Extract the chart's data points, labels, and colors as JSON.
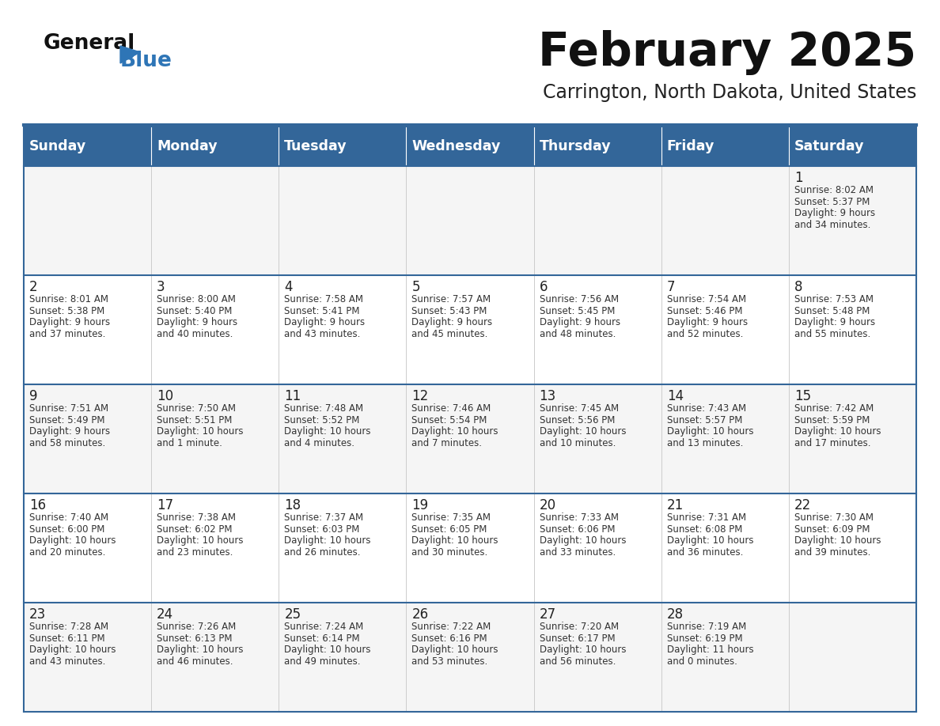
{
  "title": "February 2025",
  "subtitle": "Carrington, North Dakota, United States",
  "days_of_week": [
    "Sunday",
    "Monday",
    "Tuesday",
    "Wednesday",
    "Thursday",
    "Friday",
    "Saturday"
  ],
  "header_bg": "#336699",
  "header_text": "#FFFFFF",
  "cell_bg_odd": "#F5F5F5",
  "cell_bg_even": "#FFFFFF",
  "grid_line_color": "#336699",
  "day_num_color": "#222222",
  "info_text_color": "#333333",
  "title_color": "#111111",
  "subtitle_color": "#222222",
  "logo_general_color": "#111111",
  "logo_blue_color": "#2E75B6",
  "weeks": [
    [
      {
        "day": null
      },
      {
        "day": null
      },
      {
        "day": null
      },
      {
        "day": null
      },
      {
        "day": null
      },
      {
        "day": null
      },
      {
        "day": 1,
        "sunrise": "8:02 AM",
        "sunset": "5:37 PM",
        "daylight": "9 hours",
        "daylight2": "and 34 minutes."
      }
    ],
    [
      {
        "day": 2,
        "sunrise": "8:01 AM",
        "sunset": "5:38 PM",
        "daylight": "9 hours",
        "daylight2": "and 37 minutes."
      },
      {
        "day": 3,
        "sunrise": "8:00 AM",
        "sunset": "5:40 PM",
        "daylight": "9 hours",
        "daylight2": "and 40 minutes."
      },
      {
        "day": 4,
        "sunrise": "7:58 AM",
        "sunset": "5:41 PM",
        "daylight": "9 hours",
        "daylight2": "and 43 minutes."
      },
      {
        "day": 5,
        "sunrise": "7:57 AM",
        "sunset": "5:43 PM",
        "daylight": "9 hours",
        "daylight2": "and 45 minutes."
      },
      {
        "day": 6,
        "sunrise": "7:56 AM",
        "sunset": "5:45 PM",
        "daylight": "9 hours",
        "daylight2": "and 48 minutes."
      },
      {
        "day": 7,
        "sunrise": "7:54 AM",
        "sunset": "5:46 PM",
        "daylight": "9 hours",
        "daylight2": "and 52 minutes."
      },
      {
        "day": 8,
        "sunrise": "7:53 AM",
        "sunset": "5:48 PM",
        "daylight": "9 hours",
        "daylight2": "and 55 minutes."
      }
    ],
    [
      {
        "day": 9,
        "sunrise": "7:51 AM",
        "sunset": "5:49 PM",
        "daylight": "9 hours",
        "daylight2": "and 58 minutes."
      },
      {
        "day": 10,
        "sunrise": "7:50 AM",
        "sunset": "5:51 PM",
        "daylight": "10 hours",
        "daylight2": "and 1 minute."
      },
      {
        "day": 11,
        "sunrise": "7:48 AM",
        "sunset": "5:52 PM",
        "daylight": "10 hours",
        "daylight2": "and 4 minutes."
      },
      {
        "day": 12,
        "sunrise": "7:46 AM",
        "sunset": "5:54 PM",
        "daylight": "10 hours",
        "daylight2": "and 7 minutes."
      },
      {
        "day": 13,
        "sunrise": "7:45 AM",
        "sunset": "5:56 PM",
        "daylight": "10 hours",
        "daylight2": "and 10 minutes."
      },
      {
        "day": 14,
        "sunrise": "7:43 AM",
        "sunset": "5:57 PM",
        "daylight": "10 hours",
        "daylight2": "and 13 minutes."
      },
      {
        "day": 15,
        "sunrise": "7:42 AM",
        "sunset": "5:59 PM",
        "daylight": "10 hours",
        "daylight2": "and 17 minutes."
      }
    ],
    [
      {
        "day": 16,
        "sunrise": "7:40 AM",
        "sunset": "6:00 PM",
        "daylight": "10 hours",
        "daylight2": "and 20 minutes."
      },
      {
        "day": 17,
        "sunrise": "7:38 AM",
        "sunset": "6:02 PM",
        "daylight": "10 hours",
        "daylight2": "and 23 minutes."
      },
      {
        "day": 18,
        "sunrise": "7:37 AM",
        "sunset": "6:03 PM",
        "daylight": "10 hours",
        "daylight2": "and 26 minutes."
      },
      {
        "day": 19,
        "sunrise": "7:35 AM",
        "sunset": "6:05 PM",
        "daylight": "10 hours",
        "daylight2": "and 30 minutes."
      },
      {
        "day": 20,
        "sunrise": "7:33 AM",
        "sunset": "6:06 PM",
        "daylight": "10 hours",
        "daylight2": "and 33 minutes."
      },
      {
        "day": 21,
        "sunrise": "7:31 AM",
        "sunset": "6:08 PM",
        "daylight": "10 hours",
        "daylight2": "and 36 minutes."
      },
      {
        "day": 22,
        "sunrise": "7:30 AM",
        "sunset": "6:09 PM",
        "daylight": "10 hours",
        "daylight2": "and 39 minutes."
      }
    ],
    [
      {
        "day": 23,
        "sunrise": "7:28 AM",
        "sunset": "6:11 PM",
        "daylight": "10 hours",
        "daylight2": "and 43 minutes."
      },
      {
        "day": 24,
        "sunrise": "7:26 AM",
        "sunset": "6:13 PM",
        "daylight": "10 hours",
        "daylight2": "and 46 minutes."
      },
      {
        "day": 25,
        "sunrise": "7:24 AM",
        "sunset": "6:14 PM",
        "daylight": "10 hours",
        "daylight2": "and 49 minutes."
      },
      {
        "day": 26,
        "sunrise": "7:22 AM",
        "sunset": "6:16 PM",
        "daylight": "10 hours",
        "daylight2": "and 53 minutes."
      },
      {
        "day": 27,
        "sunrise": "7:20 AM",
        "sunset": "6:17 PM",
        "daylight": "10 hours",
        "daylight2": "and 56 minutes."
      },
      {
        "day": 28,
        "sunrise": "7:19 AM",
        "sunset": "6:19 PM",
        "daylight": "11 hours",
        "daylight2": "and 0 minutes."
      },
      {
        "day": null
      }
    ]
  ]
}
